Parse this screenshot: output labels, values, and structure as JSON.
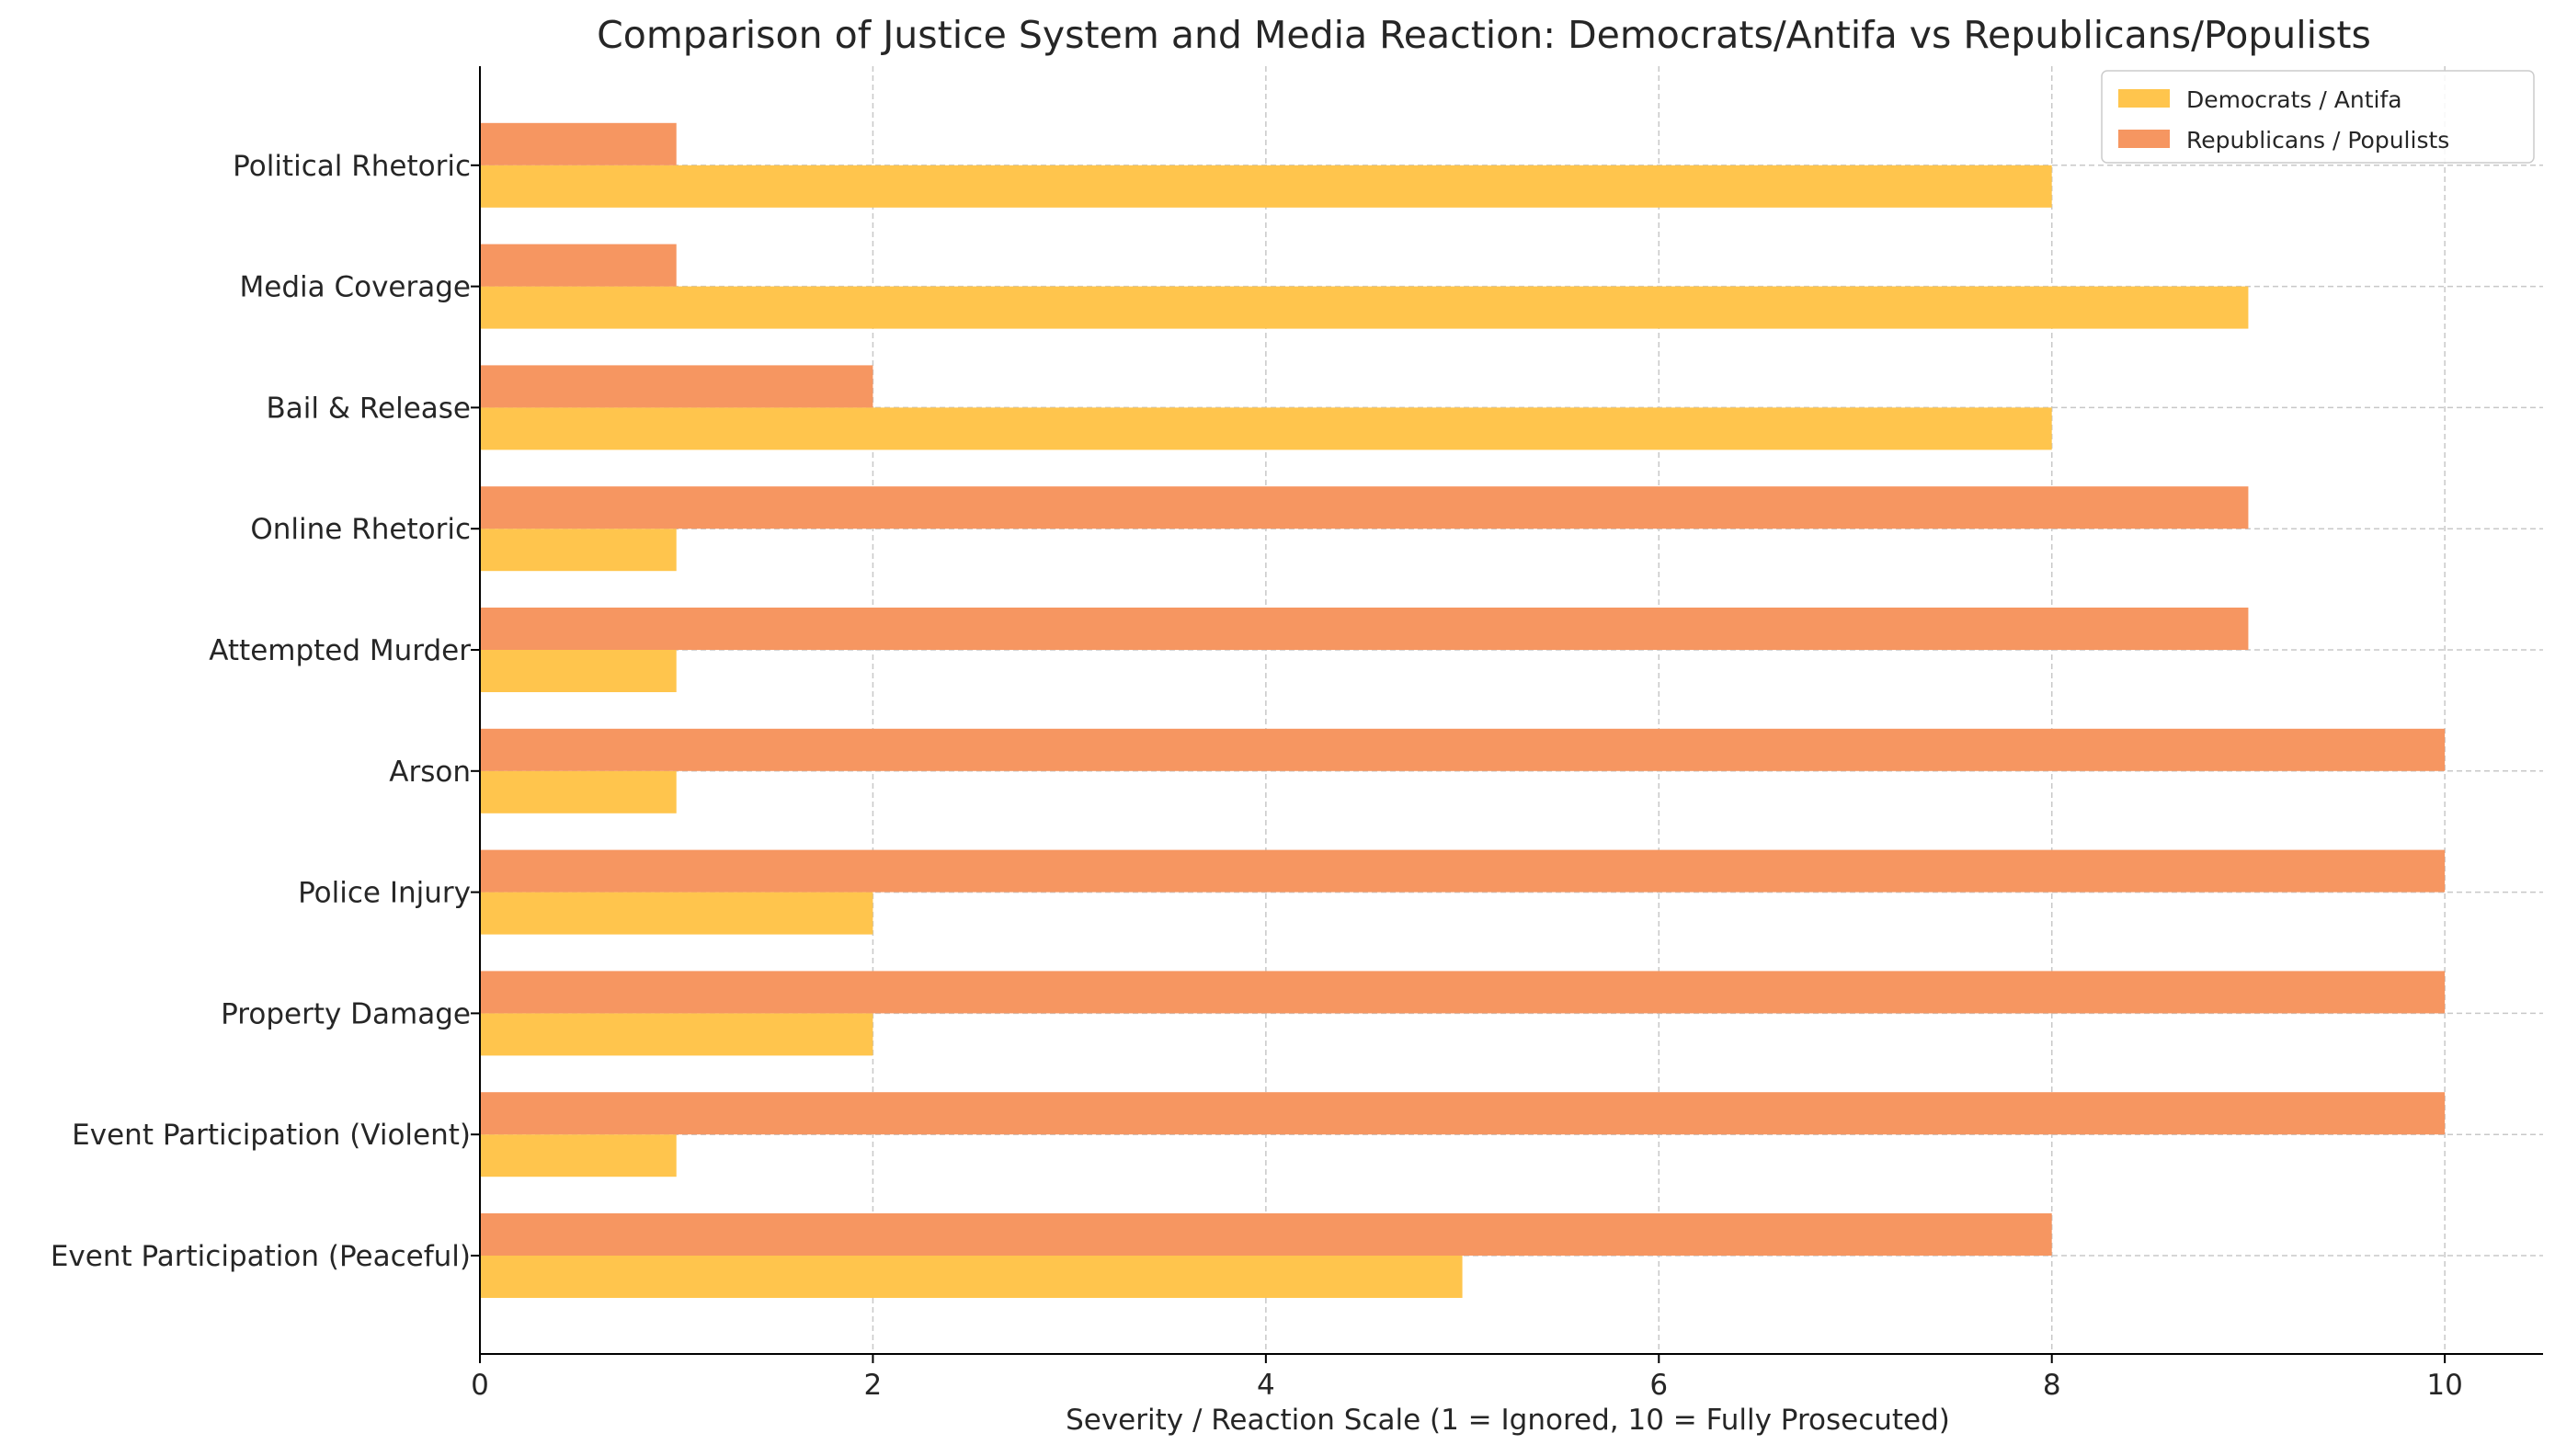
{
  "chart_data": {
    "type": "bar",
    "orientation": "horizontal",
    "title": "Comparison of Justice System and Media Reaction: Democrats/Antifa vs Republicans/Populists",
    "xlabel": "Severity / Reaction Scale (1 = Ignored, 10 = Fully Prosecuted)",
    "ylabel": "",
    "xlim": [
      0,
      10.5
    ],
    "xticks": [
      0,
      2,
      4,
      6,
      8,
      10
    ],
    "grid": true,
    "legend_position": "top-right",
    "categories": [
      "Event Participation (Peaceful)",
      "Event Participation (Violent)",
      "Property Damage",
      "Police Injury",
      "Arson",
      "Attempted Murder",
      "Online Rhetoric",
      "Bail & Release",
      "Media Coverage",
      "Political Rhetoric"
    ],
    "series": [
      {
        "name": "Democrats / Antifa",
        "color": "#FFC54D",
        "values": [
          5,
          1,
          2,
          2,
          1,
          1,
          1,
          8,
          9,
          8
        ]
      },
      {
        "name": "Republicans / Populists",
        "color": "#F69661",
        "values": [
          8,
          10,
          10,
          10,
          10,
          9,
          9,
          2,
          1,
          1
        ]
      }
    ]
  }
}
